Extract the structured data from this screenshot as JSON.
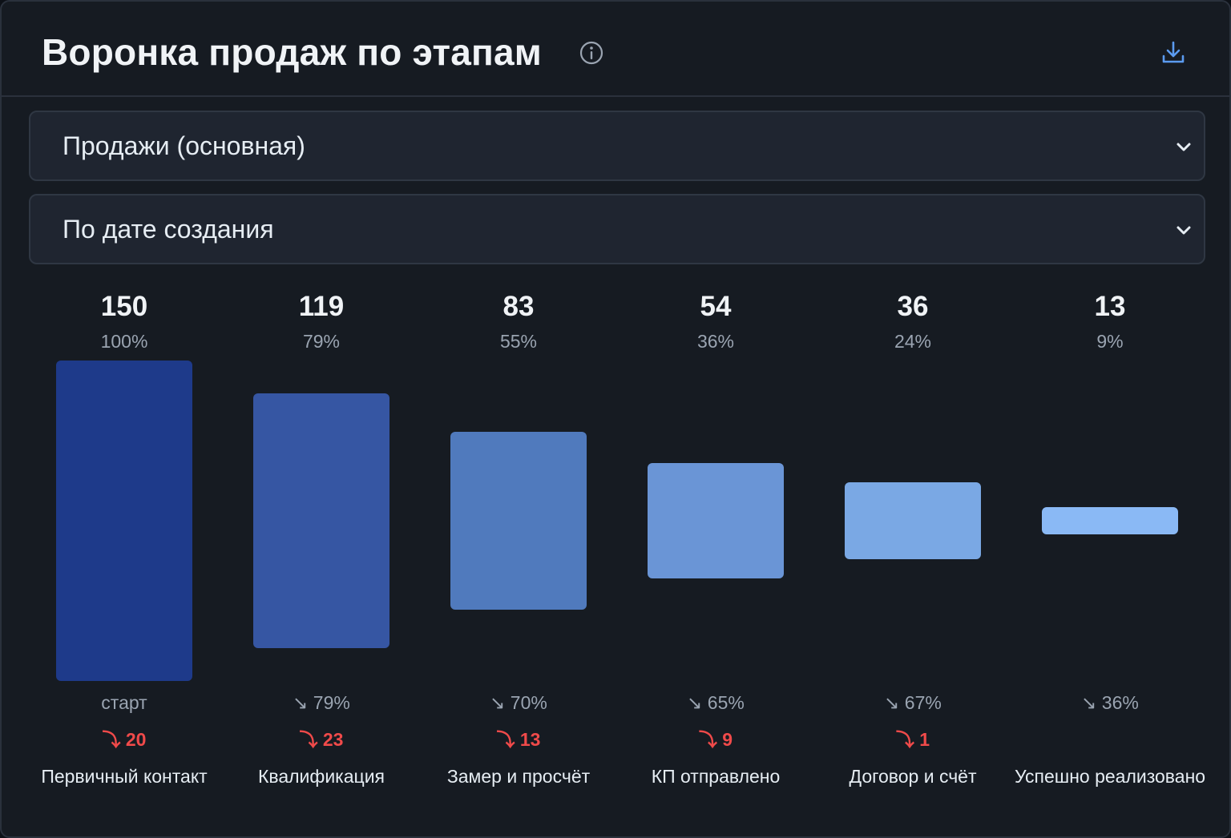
{
  "header": {
    "title": "Воронка продаж по этапам"
  },
  "filters": {
    "pipeline": "Продажи (основная)",
    "date_mode": "По дате создания"
  },
  "icons": {
    "info": "info-icon",
    "download": "download-icon",
    "dropdown": "chevron-down-icon"
  },
  "colors": {
    "accent": "#5b9bf0",
    "loss": "#f04a4a",
    "bars": [
      "#1e3a8a",
      "#3656a3",
      "#507abd",
      "#6a95d6",
      "#7aa8e4",
      "#8ab9f5"
    ]
  },
  "chart_data": {
    "type": "bar",
    "categories": [
      "Первичный контакт",
      "Квалификация",
      "Замер и просчёт",
      "КП отправлено",
      "Договор и счёт",
      "Успешно реализовано"
    ],
    "values": [
      150,
      119,
      83,
      54,
      36,
      13
    ],
    "percent_of_first": [
      "100%",
      "79%",
      "55%",
      "36%",
      "24%",
      "9%"
    ],
    "step_conversion": [
      "старт",
      "↘ 79%",
      "↘ 70%",
      "↘ 65%",
      "↘ 67%",
      "↘ 36%"
    ],
    "lost": [
      "⤵ 20",
      "⤵ 23",
      "⤵ 13",
      "⤵ 9",
      "⤵ 1",
      ""
    ]
  }
}
